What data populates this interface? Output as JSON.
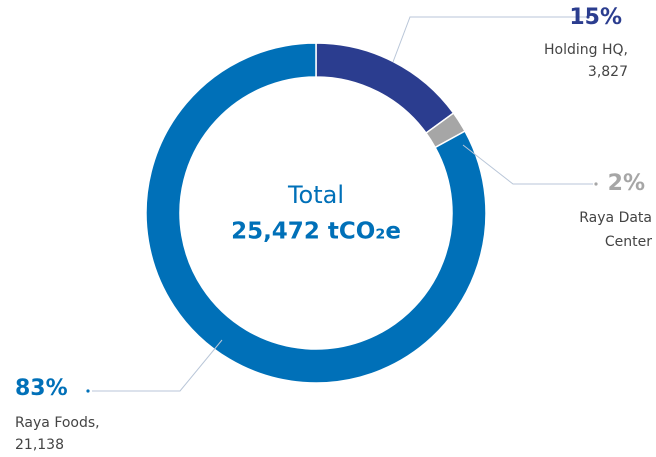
{
  "chart_data": {
    "type": "donut",
    "center_title": "Total",
    "center_value": "25,472 tCO₂e",
    "categories": [
      "Holding HQ,",
      "Raya Data Center",
      "Raya Foods,"
    ],
    "values": [
      15,
      2,
      83
    ],
    "value_labels": [
      "15%",
      "2%",
      "83%"
    ],
    "amount_labels": [
      "3,827",
      null,
      "21,138"
    ],
    "colors": [
      "#2b3d8f",
      "#a6a6a6",
      "#0070b8"
    ]
  }
}
